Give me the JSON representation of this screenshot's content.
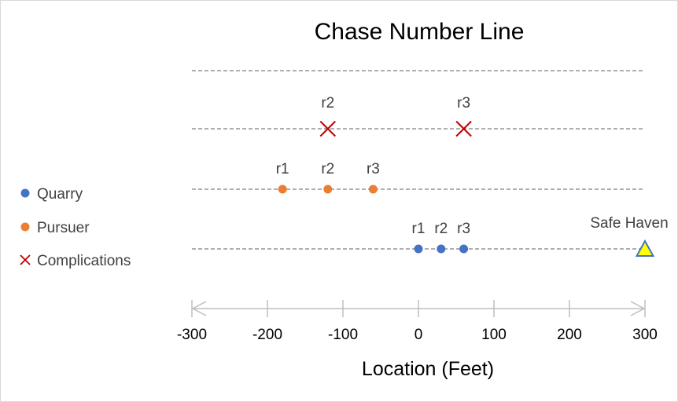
{
  "chart_data": {
    "type": "scatter",
    "title": "Chase Number Line",
    "xlabel": "Location (Feet)",
    "ylabel": "",
    "xlim": [
      -300,
      300
    ],
    "xticks": [
      -300,
      -200,
      -100,
      0,
      100,
      200,
      300
    ],
    "grid": "horizontal dashed track lines",
    "legend_position": "left",
    "series": [
      {
        "name": "Quarry",
        "marker": "circle",
        "color": "#4472C4",
        "track": 1,
        "points": [
          {
            "x": 0,
            "label": "r1"
          },
          {
            "x": 30,
            "label": "r2"
          },
          {
            "x": 60,
            "label": "r3"
          }
        ]
      },
      {
        "name": "Pursuer",
        "marker": "circle",
        "color": "#ED7D31",
        "track": 2,
        "points": [
          {
            "x": -180,
            "label": "r1"
          },
          {
            "x": -120,
            "label": "r2"
          },
          {
            "x": -60,
            "label": "r3"
          }
        ]
      },
      {
        "name": "Complications",
        "marker": "x",
        "color": "#C00000",
        "track": 3,
        "points": [
          {
            "x": -120,
            "label": "r2"
          },
          {
            "x": 60,
            "label": "r3"
          }
        ]
      }
    ],
    "annotations": [
      {
        "x": 300,
        "track": 1,
        "label": "Safe Haven",
        "marker": "triangle",
        "fill": "#FFFF00",
        "stroke": "#4472C4"
      }
    ],
    "tracks": [
      1,
      2,
      3,
      4
    ]
  }
}
